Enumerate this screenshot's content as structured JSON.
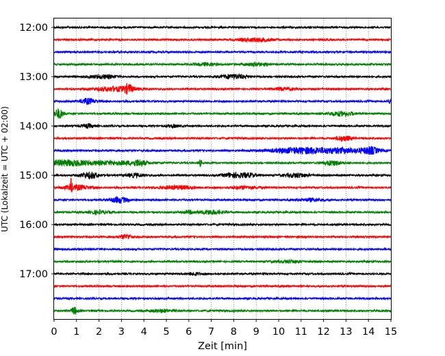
{
  "chart_data": {
    "type": "line",
    "title": "",
    "xlabel": "Zeit  [min]",
    "ylabel": "UTC (Lokalzeit = UTC + 02:00)",
    "xlim": [
      0,
      15
    ],
    "x_ticks": [
      0,
      1,
      2,
      3,
      4,
      5,
      6,
      7,
      8,
      9,
      10,
      11,
      12,
      13,
      14,
      15
    ],
    "y_tick_labels": [
      "12:00",
      "13:00",
      "14:00",
      "15:00",
      "16:00",
      "17:00"
    ],
    "grid": "vertical dotted lines at each minute",
    "trace_colors": [
      "#000000",
      "#ff0000",
      "#0000ff",
      "#008000"
    ],
    "series": [
      {
        "start": "12:00",
        "color": "#000000",
        "events": []
      },
      {
        "start": "12:15",
        "color": "#ff0000",
        "events": [
          {
            "t": 9.0,
            "amp": 2.4,
            "width": 0.8
          }
        ]
      },
      {
        "start": "12:30",
        "color": "#0000ff",
        "events": []
      },
      {
        "start": "12:45",
        "color": "#008000",
        "events": [
          {
            "t": 6.8,
            "amp": 2.0,
            "width": 0.5
          },
          {
            "t": 9.0,
            "amp": 2.0,
            "width": 0.6
          }
        ]
      },
      {
        "start": "13:00",
        "color": "#000000",
        "events": [
          {
            "t": 2.2,
            "amp": 2.5,
            "width": 0.6
          },
          {
            "t": 8.0,
            "amp": 3.2,
            "width": 0.6
          }
        ]
      },
      {
        "start": "13:15",
        "color": "#ff0000",
        "events": [
          {
            "t": 2.7,
            "amp": 3.0,
            "width": 1.0
          },
          {
            "t": 3.3,
            "amp": 5.0,
            "width": 0.2
          },
          {
            "t": 10.2,
            "amp": 1.8,
            "width": 0.5
          }
        ]
      },
      {
        "start": "13:30",
        "color": "#0000ff",
        "events": [
          {
            "t": 1.5,
            "amp": 4.0,
            "width": 0.35
          },
          {
            "t": 15.0,
            "amp": 3.0,
            "width": 0.15
          }
        ]
      },
      {
        "start": "13:45",
        "color": "#008000",
        "events": [
          {
            "t": 0.2,
            "amp": 7.0,
            "width": 0.2
          },
          {
            "t": 12.8,
            "amp": 3.0,
            "width": 0.6
          }
        ]
      },
      {
        "start": "14:00",
        "color": "#000000",
        "events": [
          {
            "t": 1.5,
            "amp": 2.5,
            "width": 0.3
          },
          {
            "t": 5.3,
            "amp": 1.8,
            "width": 0.3
          }
        ]
      },
      {
        "start": "14:15",
        "color": "#ff0000",
        "events": [
          {
            "t": 12.9,
            "amp": 3.5,
            "width": 0.35
          }
        ]
      },
      {
        "start": "14:30",
        "color": "#0000ff",
        "events": [
          {
            "t": 11.0,
            "amp": 4.0,
            "width": 1.3
          },
          {
            "t": 13.0,
            "amp": 3.0,
            "width": 1.4
          },
          {
            "t": 14.1,
            "amp": 4.0,
            "width": 0.3
          }
        ]
      },
      {
        "start": "14:45",
        "color": "#008000",
        "events": [
          {
            "t": 0.5,
            "amp": 4.0,
            "width": 1.2
          },
          {
            "t": 2.8,
            "amp": 2.5,
            "width": 1.2
          },
          {
            "t": 3.8,
            "amp": 3.5,
            "width": 0.3
          },
          {
            "t": 6.5,
            "amp": 4.5,
            "width": 0.08
          },
          {
            "t": 12.4,
            "amp": 3.5,
            "width": 0.4
          }
        ]
      },
      {
        "start": "15:00",
        "color": "#000000",
        "events": [
          {
            "t": 1.6,
            "amp": 4.5,
            "width": 0.4
          },
          {
            "t": 3.6,
            "amp": 2.5,
            "width": 0.4
          },
          {
            "t": 7.9,
            "amp": 3.0,
            "width": 0.4
          },
          {
            "t": 8.6,
            "amp": 3.0,
            "width": 0.4
          },
          {
            "t": 10.8,
            "amp": 3.0,
            "width": 0.5
          }
        ]
      },
      {
        "start": "15:15",
        "color": "#ff0000",
        "events": [
          {
            "t": 0.75,
            "amp": 10.0,
            "width": 0.05
          },
          {
            "t": 1.0,
            "amp": 3.5,
            "width": 0.6
          },
          {
            "t": 5.5,
            "amp": 2.5,
            "width": 0.8
          },
          {
            "t": 8.5,
            "amp": 2.0,
            "width": 0.6
          }
        ]
      },
      {
        "start": "15:30",
        "color": "#0000ff",
        "events": [
          {
            "t": 2.9,
            "amp": 4.0,
            "width": 0.4
          },
          {
            "t": 11.5,
            "amp": 2.0,
            "width": 0.5
          }
        ]
      },
      {
        "start": "15:45",
        "color": "#008000",
        "events": [
          {
            "t": 2.0,
            "amp": 2.0,
            "width": 0.5
          },
          {
            "t": 6.0,
            "amp": 2.0,
            "width": 0.3
          },
          {
            "t": 7.0,
            "amp": 3.0,
            "width": 0.5
          }
        ]
      },
      {
        "start": "16:00",
        "color": "#000000",
        "events": []
      },
      {
        "start": "16:15",
        "color": "#ff0000",
        "events": [
          {
            "t": 3.2,
            "amp": 3.0,
            "width": 0.3
          }
        ]
      },
      {
        "start": "16:30",
        "color": "#0000ff",
        "events": []
      },
      {
        "start": "16:45",
        "color": "#008000",
        "events": [
          {
            "t": 10.5,
            "amp": 1.8,
            "width": 0.6
          }
        ]
      },
      {
        "start": "17:00",
        "color": "#000000",
        "events": [
          {
            "t": 6.2,
            "amp": 2.0,
            "width": 0.3
          }
        ]
      },
      {
        "start": "17:15",
        "color": "#ff0000",
        "events": []
      },
      {
        "start": "17:30",
        "color": "#0000ff",
        "events": []
      },
      {
        "start": "17:45",
        "color": "#008000",
        "events": [
          {
            "t": 0.9,
            "amp": 5.0,
            "width": 0.15
          },
          {
            "t": 4.8,
            "amp": 2.0,
            "width": 0.5
          }
        ]
      }
    ]
  }
}
